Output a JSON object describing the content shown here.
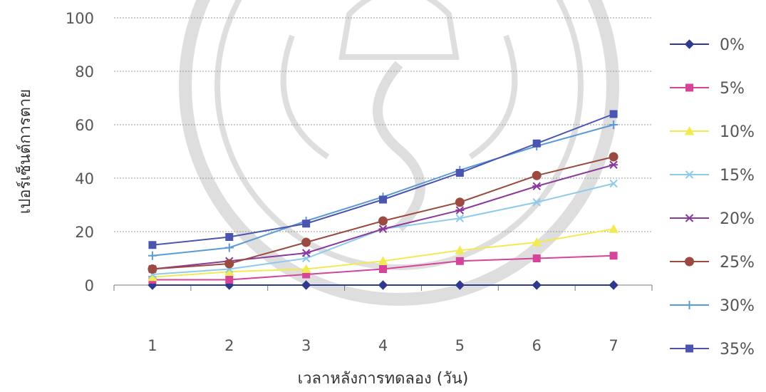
{
  "chart_data": {
    "type": "line",
    "title": "",
    "xlabel": "เวลาหลังการทดลอง (วัน)",
    "ylabel": "เปอร์เซ็นต์การตาย",
    "x": [
      1,
      2,
      3,
      4,
      5,
      6,
      7
    ],
    "ylim": [
      0,
      100
    ],
    "yticks": [
      0,
      20,
      40,
      60,
      80,
      100
    ],
    "grid": true,
    "legend_position": "right",
    "series": [
      {
        "name": "0%",
        "color": "#2e3a8c",
        "marker": "diamond",
        "values": [
          0,
          0,
          0,
          0,
          0,
          0,
          0
        ]
      },
      {
        "name": "5%",
        "color": "#d6449a",
        "marker": "square",
        "values": [
          2,
          2,
          4,
          6,
          9,
          10,
          11
        ]
      },
      {
        "name": "10%",
        "color": "#f2ea52",
        "marker": "triangle",
        "values": [
          3,
          5,
          6,
          9,
          13,
          16,
          21
        ]
      },
      {
        "name": "15%",
        "color": "#8ccbea",
        "marker": "x",
        "values": [
          4,
          6,
          10,
          21,
          25,
          31,
          38
        ]
      },
      {
        "name": "20%",
        "color": "#8a3a9a",
        "marker": "star",
        "values": [
          6,
          9,
          12,
          21,
          28,
          37,
          45
        ]
      },
      {
        "name": "25%",
        "color": "#9a4a40",
        "marker": "circle",
        "values": [
          6,
          8,
          16,
          24,
          31,
          41,
          48
        ]
      },
      {
        "name": "30%",
        "color": "#5b9bd5",
        "marker": "plus",
        "values": [
          11,
          14,
          24,
          33,
          43,
          52,
          60
        ]
      },
      {
        "name": "35%",
        "color": "#4a55b0",
        "marker": "square",
        "values": [
          15,
          18,
          23,
          32,
          42,
          53,
          64
        ]
      }
    ]
  }
}
